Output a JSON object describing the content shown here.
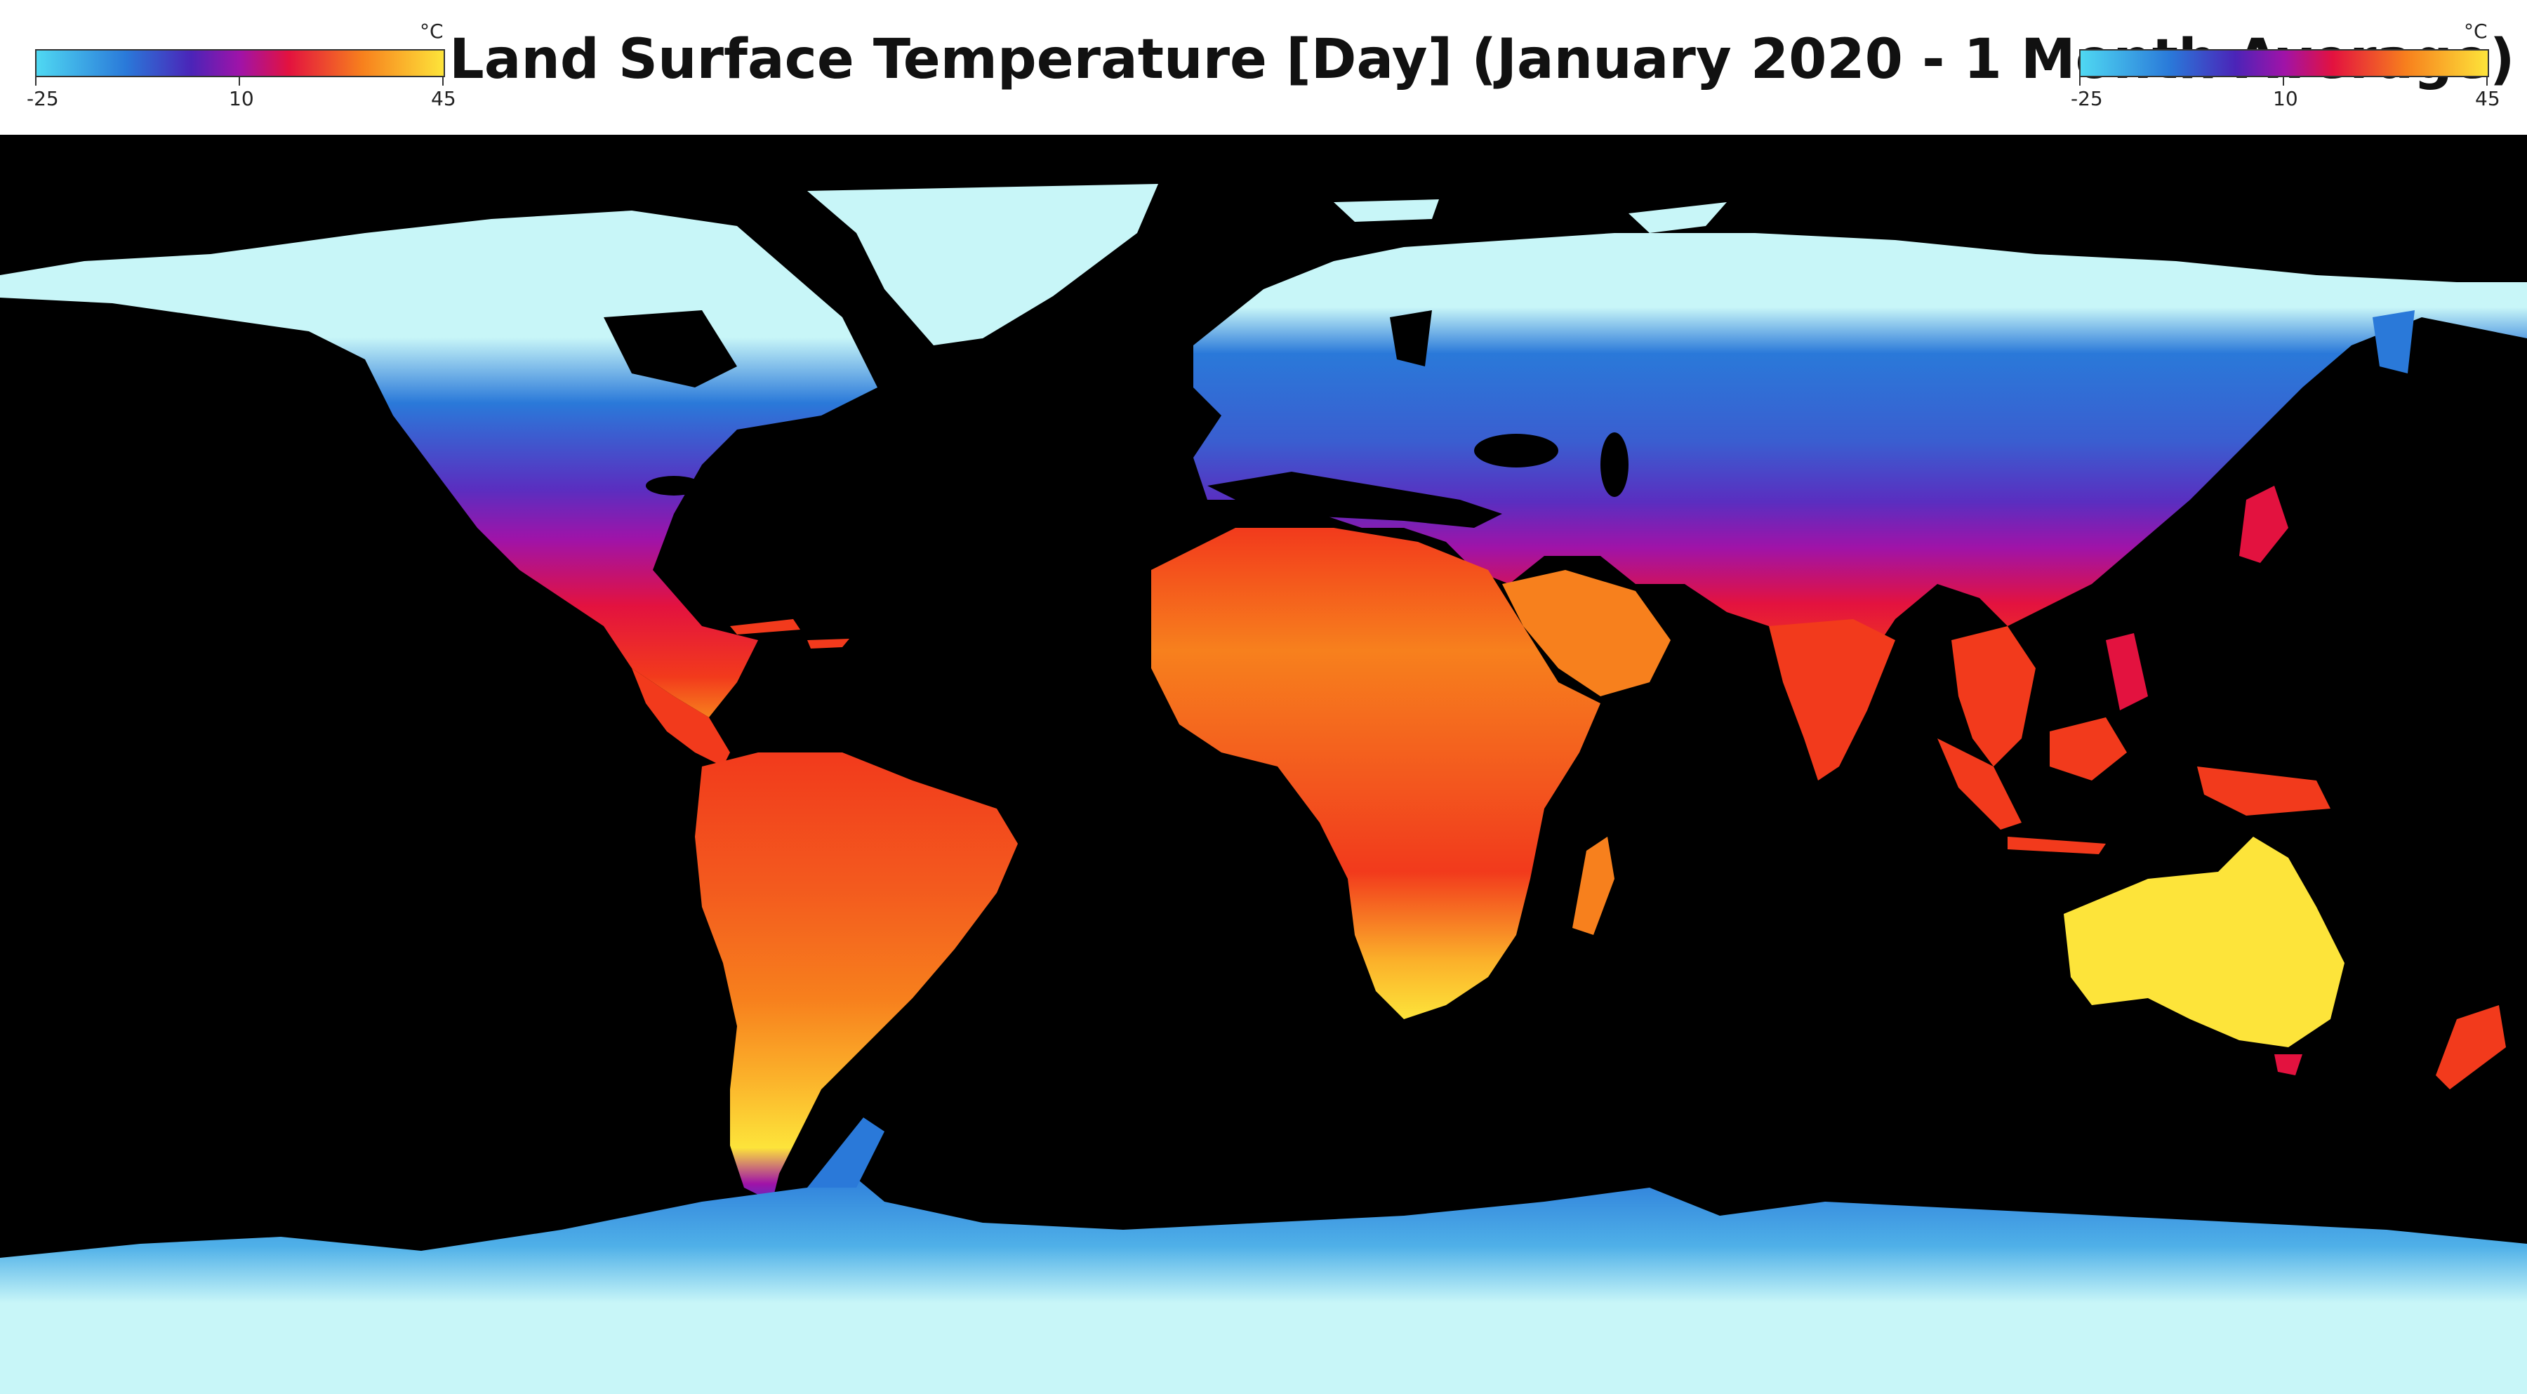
{
  "title": "Land Surface Temperature [Day] (January 2020 - 1 Month Average)",
  "legend_left": {
    "unit": "°C",
    "min": "-25",
    "mid": "10",
    "max": "45"
  },
  "legend_right": {
    "unit": "°C",
    "min": "-25",
    "mid": "10",
    "max": "45"
  },
  "colors": {
    "ocean": "#000000",
    "ice": "#c8f6f8",
    "cold_blue": "#2a79d9",
    "violet": "#5a2ec0",
    "purple": "#a013a8",
    "crimson": "#e3123f",
    "red_orange": "#f23a1c",
    "orange": "#f7801d",
    "yellow": "#fde43a"
  }
}
